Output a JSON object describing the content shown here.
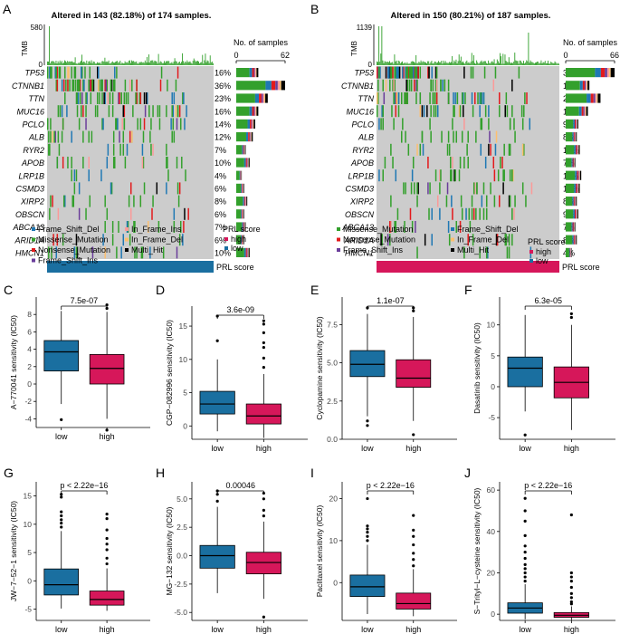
{
  "colors": {
    "missense": "#33a02c",
    "frameshift_del": "#1f78b4",
    "nonsense": "#e31a1c",
    "frameshift_ins": "#6a3d9a",
    "inframe_ins": "#fb9a99",
    "inframe_del": "#fdbf6f",
    "multi_hit": "#000000",
    "bg": "#cccccc",
    "low": "#1a6fa0",
    "high": "#d6175a",
    "tmb": "#33a02c"
  },
  "panels": {
    "A": {
      "label": "A",
      "title": "Altered in 143 (82.18%) of 174 samples.",
      "tmb_label": "TMB",
      "tmb_max": "580",
      "tmb_min": "0",
      "ns_title": "No. of samples",
      "ns_min": "0",
      "ns_max": "62",
      "ns_axis_max": 62,
      "n_samples": 174,
      "score_label": "PRL score",
      "score_group": "low"
    },
    "B": {
      "label": "B",
      "title": "Altered in 150 (80.21%) of 187 samples.",
      "tmb_label": "TMB",
      "tmb_max": "1139",
      "tmb_min": "0",
      "ns_title": "No. of samples",
      "ns_min": "0",
      "ns_max": "66",
      "ns_axis_max": 66,
      "n_samples": 187,
      "score_label": "PRL score",
      "score_group": "high"
    }
  },
  "chart_data": [
    {
      "type": "oncoplot",
      "panel": "A",
      "title": "Altered in 143 (82.18%) of 174 samples.",
      "genes": [
        "TP53",
        "CTNNB1",
        "TTN",
        "MUC16",
        "PCLO",
        "ALB",
        "RYR2",
        "APOB",
        "LRP1B",
        "CSMD3",
        "XIRP2",
        "OBSCN",
        "ABCA13",
        "ARID1A",
        "HMCN1"
      ],
      "percents": [
        "16%",
        "36%",
        "23%",
        "16%",
        "14%",
        "12%",
        "7%",
        "10%",
        "4%",
        "6%",
        "8%",
        "6%",
        "7%",
        "6%",
        "10%"
      ],
      "counts": [
        28,
        62,
        40,
        28,
        24,
        21,
        12,
        17,
        7,
        10,
        14,
        10,
        12,
        10,
        17
      ],
      "legend": [
        "Frame_Shift_Del",
        "In_Frame_Ins",
        "Missense_Mutation",
        "In_Frame_Del",
        "Nonsense_Mutation",
        "Multi_Hit",
        "Frame_Shift_Ins"
      ],
      "legend_keys": [
        "frameshift_del",
        "inframe_ins",
        "missense",
        "inframe_del",
        "nonsense",
        "multi_hit",
        "frameshift_ins"
      ],
      "score_title": "PRL score",
      "score_levels": [
        "high",
        "low"
      ]
    },
    {
      "type": "oncoplot",
      "panel": "B",
      "title": "Altered in 150 (80.21%) of 187 samples.",
      "genes": [
        "TP53",
        "CTNNB1",
        "TTN",
        "MUC16",
        "PCLO",
        "ALB",
        "RYR2",
        "APOB",
        "LRP1B",
        "CSMD3",
        "XIRP2",
        "OBSCN",
        "ABCA13",
        "ARID1A",
        "HMCN1"
      ],
      "percents": [
        "35%",
        "17%",
        "25%",
        "16%",
        "9%",
        "8%",
        "10%",
        "7%",
        "11%",
        "10%",
        "8%",
        "9%",
        "7%",
        "8%",
        "4%"
      ],
      "counts": [
        66,
        32,
        47,
        30,
        17,
        15,
        19,
        13,
        21,
        19,
        15,
        17,
        13,
        15,
        8
      ],
      "legend": [
        "Missense_Mutation",
        "Frame_Shift_Del",
        "Nonsense_Mutation",
        "In_Frame_Del",
        "Frame_Shift_Ins",
        "Multi_Hit"
      ],
      "legend_keys": [
        "missense",
        "frameshift_del",
        "nonsense",
        "inframe_del",
        "frameshift_ins",
        "multi_hit"
      ],
      "score_title": "PRL score",
      "score_levels": [
        "high",
        "low"
      ]
    },
    {
      "type": "boxplot",
      "panel": "C",
      "ylabel": "A−770041 sensitivity (IC50)",
      "pvalue": "7.5e-07",
      "categories": [
        "low",
        "high"
      ],
      "yticks": [
        -4,
        -2,
        0,
        2,
        4,
        6,
        8
      ],
      "ylim": [
        -5,
        10
      ],
      "boxes": [
        {
          "group": "low",
          "min": -2.3,
          "q1": 1.5,
          "median": 3.7,
          "q3": 5.0,
          "max": 8.4,
          "outliers": [
            -4.1
          ]
        },
        {
          "group": "high",
          "min": -4.0,
          "q1": 0.0,
          "median": 1.8,
          "q3": 3.4,
          "max": 8.3,
          "outliers": [
            8.7,
            9.1,
            -5.3
          ]
        }
      ]
    },
    {
      "type": "boxplot",
      "panel": "D",
      "ylabel": "CGP−082996 sensitivity (IC50)",
      "pvalue": "3.6e-09",
      "categories": [
        "low",
        "high"
      ],
      "yticks": [
        0,
        5,
        10,
        15
      ],
      "ylim": [
        -2,
        18
      ],
      "boxes": [
        {
          "group": "low",
          "min": -0.8,
          "q1": 1.8,
          "median": 3.3,
          "q3": 5.2,
          "max": 10.0,
          "outliers": [
            12.8,
            16.5
          ]
        },
        {
          "group": "high",
          "min": -1.8,
          "q1": 0.3,
          "median": 1.5,
          "q3": 3.3,
          "max": 7.8,
          "outliers": [
            8.8,
            10.2,
            11.8,
            12.5,
            14.0,
            15.3,
            15.8
          ]
        }
      ]
    },
    {
      "type": "boxplot",
      "panel": "E",
      "ylabel": "Cyclopamine sensitivity (IC50)",
      "pvalue": "1.1e-07",
      "categories": [
        "low",
        "high"
      ],
      "yticks": [
        0.0,
        2.5,
        5.0,
        7.5
      ],
      "ylim": [
        0,
        9.3
      ],
      "boxes": [
        {
          "group": "low",
          "min": 1.5,
          "q1": 4.1,
          "median": 4.9,
          "q3": 5.8,
          "max": 8.2,
          "outliers": [
            8.6,
            1.2,
            0.9
          ]
        },
        {
          "group": "high",
          "min": 1.2,
          "q1": 3.4,
          "median": 4.0,
          "q3": 5.2,
          "max": 8.0,
          "outliers": [
            8.6,
            8.4,
            0.3
          ]
        }
      ]
    },
    {
      "type": "boxplot",
      "panel": "F",
      "ylabel": "Dasatinib sensitivity (IC50)",
      "pvalue": "6.3e-05",
      "categories": [
        "low",
        "high"
      ],
      "yticks": [
        -5,
        0,
        5,
        10
      ],
      "ylim": [
        -8.5,
        14.5
      ],
      "boxes": [
        {
          "group": "low",
          "min": -4.0,
          "q1": 0.0,
          "median": 3.0,
          "q3": 4.8,
          "max": 11.6,
          "outliers": [
            -7.8
          ]
        },
        {
          "group": "high",
          "min": -7.0,
          "q1": -1.8,
          "median": 0.7,
          "q3": 3.2,
          "max": 10.0,
          "outliers": [
            11.2,
            11.8
          ]
        }
      ]
    },
    {
      "type": "boxplot",
      "panel": "G",
      "ylabel": "JW−7−52−1 sensitivity (IC50)",
      "pvalue": "p < 2.22e−16",
      "categories": [
        "low",
        "high"
      ],
      "yticks": [
        -5,
        0,
        5,
        10,
        15
      ],
      "ylim": [
        -7,
        17.5
      ],
      "boxes": [
        {
          "group": "low",
          "min": -4.9,
          "q1": -2.5,
          "median": -0.7,
          "q3": 2.1,
          "max": 8.8,
          "outliers": [
            9.5,
            10.2,
            10.8,
            11.5,
            12.2,
            14.8,
            15.3
          ]
        },
        {
          "group": "high",
          "min": -5.3,
          "q1": -4.3,
          "median": -3.3,
          "q3": -1.8,
          "max": 2.2,
          "outliers": [
            3,
            4,
            5.5,
            6.5,
            7.5,
            9,
            11,
            11.8
          ]
        }
      ]
    },
    {
      "type": "boxplot",
      "panel": "H",
      "ylabel": "MG−132 sensitivity (IC50)",
      "pvalue": "0.00046",
      "categories": [
        "low",
        "high"
      ],
      "yticks": [
        -5.0,
        -2.5,
        0.0,
        2.5,
        5.0
      ],
      "ylim": [
        -5.7,
        6.5
      ],
      "boxes": [
        {
          "group": "low",
          "min": -3.3,
          "q1": -1.1,
          "median": 0.0,
          "q3": 0.9,
          "max": 4.3,
          "outliers": [
            4.8,
            5.4,
            5.7
          ]
        },
        {
          "group": "high",
          "min": -3.8,
          "q1": -1.6,
          "median": -0.6,
          "q3": 0.3,
          "max": 3.0,
          "outliers": [
            3.5,
            4.0,
            5.0,
            5.5,
            -5.4
          ]
        }
      ]
    },
    {
      "type": "boxplot",
      "panel": "I",
      "ylabel": "Paclitaxel sensitivity (IC50)",
      "pvalue": "p < 2.22e−16",
      "categories": [
        "low",
        "high"
      ],
      "yticks": [
        0,
        10,
        20
      ],
      "ylim": [
        -9,
        24
      ],
      "boxes": [
        {
          "group": "low",
          "min": -7.5,
          "q1": -3.3,
          "median": -1.0,
          "q3": 1.8,
          "max": 9.0,
          "outliers": [
            10,
            11,
            12,
            12.8,
            13.5,
            20
          ]
        },
        {
          "group": "high",
          "min": -8.0,
          "q1": -6.3,
          "median": -5.0,
          "q3": -2.5,
          "max": 3.2,
          "outliers": [
            4,
            5.5,
            7,
            9,
            11,
            12.5,
            16
          ]
        }
      ]
    },
    {
      "type": "boxplot",
      "panel": "J",
      "ylabel": "S−Trityl−L−cysteine sensitivity (IC50)",
      "pvalue": "p < 2.22e−16",
      "categories": [
        "low",
        "high"
      ],
      "yticks": [
        0,
        20,
        40,
        60
      ],
      "ylim": [
        -3,
        64
      ],
      "boxes": [
        {
          "group": "low",
          "min": -2.5,
          "q1": 0.5,
          "median": 3.0,
          "q3": 5.5,
          "max": 14.5,
          "outliers": [
            16,
            18,
            20,
            22,
            24,
            27,
            30,
            33,
            38,
            45,
            50,
            56
          ]
        },
        {
          "group": "high",
          "min": -2.8,
          "q1": -1.5,
          "median": -0.5,
          "q3": 0.8,
          "max": 3.8,
          "outliers": [
            5,
            6,
            8,
            10,
            13,
            16,
            18,
            20,
            48
          ]
        }
      ]
    }
  ]
}
